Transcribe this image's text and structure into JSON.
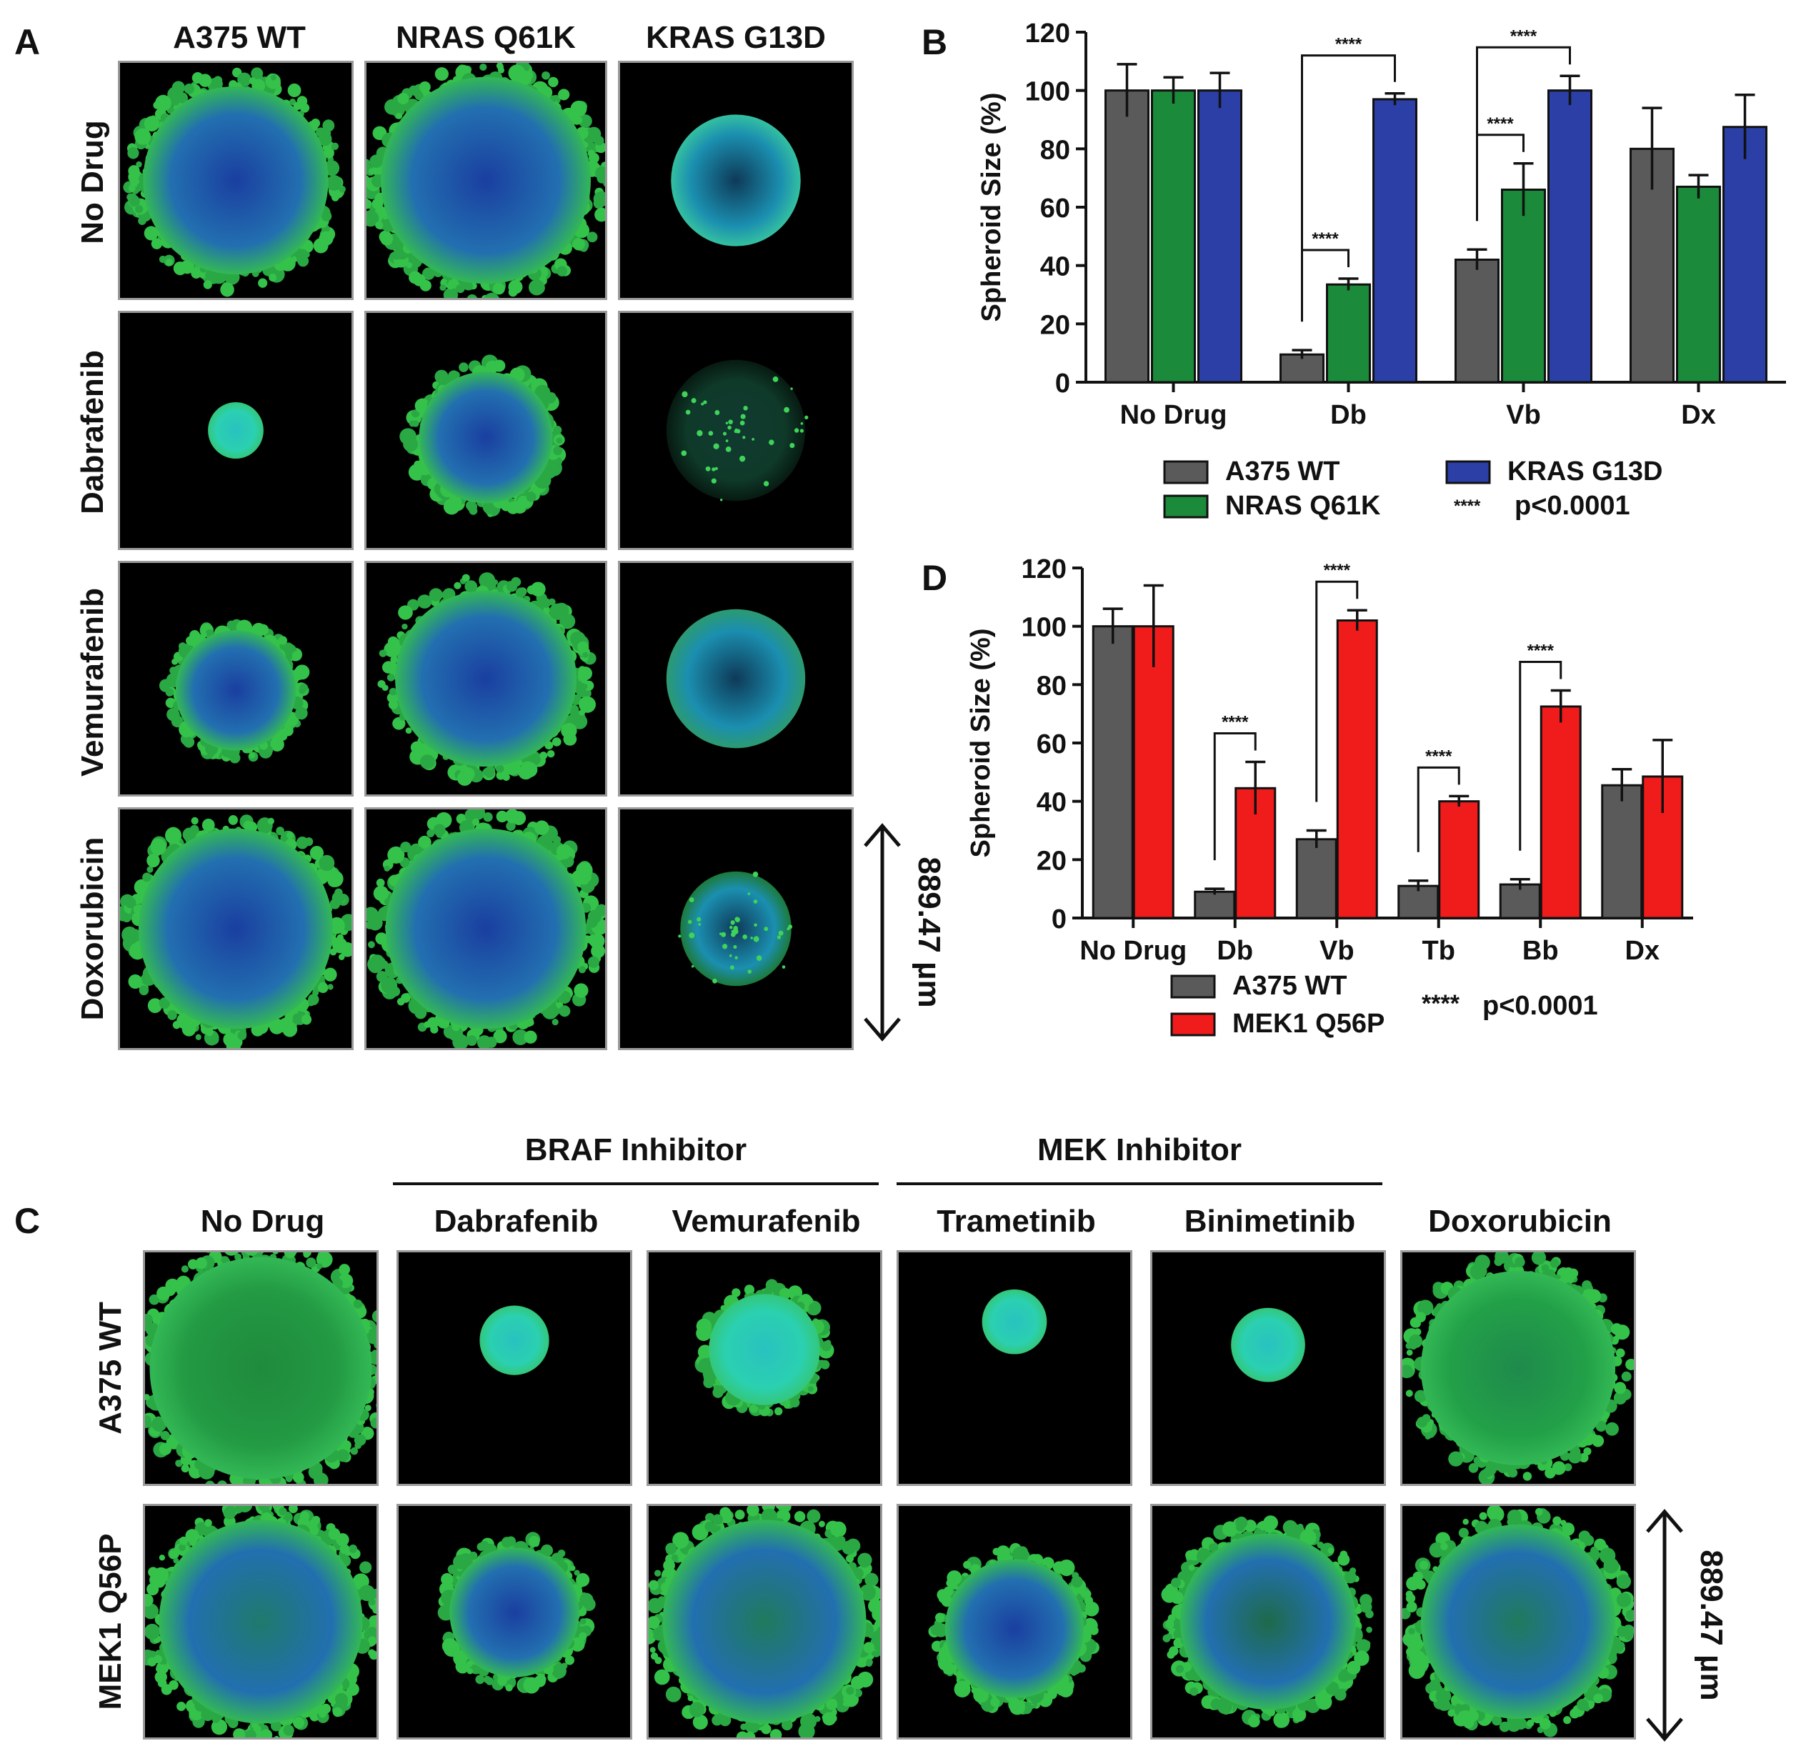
{
  "panels": {
    "A": "A",
    "B": "B",
    "C": "C",
    "D": "D"
  },
  "panelA": {
    "columns": [
      "A375 WT",
      "NRAS Q61K",
      "KRAS G13D"
    ],
    "rows": [
      "No Drug",
      "Dabrafenib",
      "Vemurafenib",
      "Doxorubicin"
    ],
    "scale": "889.47 µm"
  },
  "panelC": {
    "groups": [
      "BRAF Inhibitor",
      "MEK Inhibitor"
    ],
    "columns": [
      "No Drug",
      "Dabrafenib",
      "Vemurafenib",
      "Trametinib",
      "Binimetinib",
      "Doxorubicin"
    ],
    "rows": [
      "A375 WT",
      "MEK1 Q56P"
    ],
    "scale": "889.47 µm"
  },
  "colors": {
    "gray": "#5a5a5a",
    "green": "#1b8a3a",
    "blue": "#2b3fa6",
    "red": "#f01c1c"
  },
  "chart_data": [
    {
      "id": "B",
      "type": "bar",
      "ylabel": "Spheroid Size (%)",
      "ylim": [
        0,
        120
      ],
      "yticks": [
        0,
        20,
        40,
        60,
        80,
        100,
        120
      ],
      "categories": [
        "No Drug",
        "Db",
        "Vb",
        "Dx"
      ],
      "series": [
        {
          "name": "A375 WT",
          "color": "#5a5a5a",
          "values": [
            100,
            9.5,
            42,
            80
          ],
          "errors": [
            9,
            1.5,
            3.5,
            14
          ]
        },
        {
          "name": "NRAS Q61K",
          "color": "#1b8a3a",
          "values": [
            100,
            33.5,
            66,
            67
          ],
          "errors": [
            4.5,
            2,
            9,
            4
          ]
        },
        {
          "name": "KRAS G13D",
          "color": "#2b3fa6",
          "values": [
            100,
            97,
            100,
            87.5
          ],
          "errors": [
            6,
            2,
            5,
            11
          ]
        }
      ],
      "significance": [
        {
          "category": 1,
          "from": 0,
          "to": 1,
          "label": "****"
        },
        {
          "category": 1,
          "from": 0,
          "to": 2,
          "label": "****"
        },
        {
          "category": 2,
          "from": 0,
          "to": 1,
          "label": "****"
        },
        {
          "category": 2,
          "from": 0,
          "to": 2,
          "label": "****"
        }
      ],
      "legend_note": {
        "marker": "****",
        "text": "p<0.0001"
      }
    },
    {
      "id": "D",
      "type": "bar",
      "ylabel": "Spheroid Size (%)",
      "ylim": [
        0,
        120
      ],
      "yticks": [
        0,
        20,
        40,
        60,
        80,
        100,
        120
      ],
      "categories": [
        "No Drug",
        "Db",
        "Vb",
        "Tb",
        "Bb",
        "Dx"
      ],
      "series": [
        {
          "name": "A375 WT",
          "color": "#5a5a5a",
          "values": [
            100,
            9,
            27,
            11,
            11.5,
            45.5
          ],
          "errors": [
            6,
            1,
            3,
            1.8,
            1.8,
            5.5
          ]
        },
        {
          "name": "MEK1 Q56P",
          "color": "#f01c1c",
          "values": [
            100,
            44.5,
            102,
            40,
            72.5,
            48.5
          ],
          "errors": [
            14,
            9,
            3.5,
            1.8,
            5.5,
            12.5
          ]
        }
      ],
      "significance": [
        {
          "category": 1,
          "from": 0,
          "to": 1,
          "label": "****"
        },
        {
          "category": 2,
          "from": 0,
          "to": 1,
          "label": "****"
        },
        {
          "category": 3,
          "from": 0,
          "to": 1,
          "label": "****"
        },
        {
          "category": 4,
          "from": 0,
          "to": 1,
          "label": "****"
        }
      ],
      "legend_note": {
        "marker": "****",
        "text": "p<0.0001"
      }
    }
  ]
}
